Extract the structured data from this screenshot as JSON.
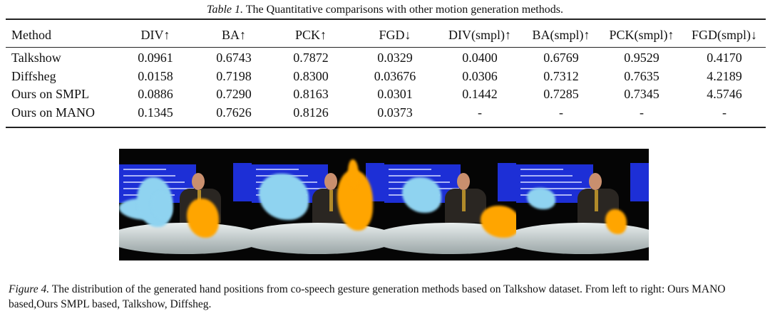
{
  "table": {
    "caption_label": "Table 1.",
    "caption_text": " The Quantitative comparisons with other motion generation methods.",
    "headers": [
      "Method",
      "DIV↑",
      "BA↑",
      "PCK↑",
      "FGD↓",
      "DIV(smpl)↑",
      "BA(smpl)↑",
      "PCK(smpl)↑",
      "FGD(smpl)↓"
    ],
    "rows": [
      [
        "Talkshow",
        "0.0961",
        "0.6743",
        "0.7872",
        "0.0329",
        "0.0400",
        "0.6769",
        "0.9529",
        "0.4170"
      ],
      [
        "Diffsheg",
        "0.0158",
        "0.7198",
        "0.8300",
        "0.03676",
        "0.0306",
        "0.7312",
        "0.7635",
        "4.2189"
      ],
      [
        "Ours on SMPL",
        "0.0886",
        "0.7290",
        "0.8163",
        "0.0301",
        "0.1442",
        "0.7285",
        "0.7345",
        "4.5746"
      ],
      [
        "Ours on MANO",
        "0.1345",
        "0.7626",
        "0.8126",
        "0.0373",
        "-",
        "-",
        "-",
        "-"
      ]
    ]
  },
  "figure": {
    "caption_label": "Figure 4.",
    "caption_text": " The distribution of the generated hand positions from co-speech gesture generation methods based on Talkshow dataset. From left to right: Ours MANO based,Ours SMPL based, Talkshow, Diffsheg.",
    "colors": {
      "left_hand": "#8fd3f0",
      "right_hand": "#ffa500",
      "screen": "#1d2fd6"
    }
  }
}
